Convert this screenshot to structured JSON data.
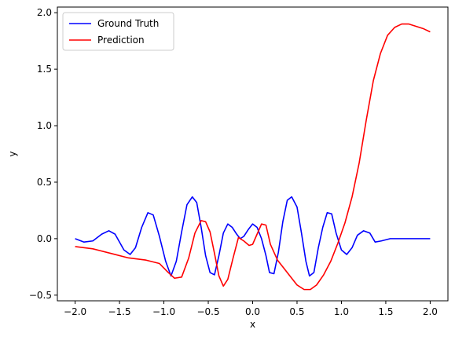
{
  "chart_data": {
    "type": "line",
    "title": "",
    "xlabel": "x",
    "ylabel": "y",
    "xlim": [
      -2.2,
      2.2
    ],
    "ylim": [
      -0.55,
      2.05
    ],
    "xticks": [
      -2.0,
      -1.5,
      -1.0,
      -0.5,
      0.0,
      0.5,
      1.0,
      1.5,
      2.0
    ],
    "xtick_labels": [
      "−2.0",
      "−1.5",
      "−1.0",
      "−0.5",
      "0.0",
      "0.5",
      "1.0",
      "1.5",
      "2.0"
    ],
    "yticks": [
      -0.5,
      0.0,
      0.5,
      1.0,
      1.5,
      2.0
    ],
    "ytick_labels": [
      "−0.5",
      "0.0",
      "0.5",
      "1.0",
      "1.5",
      "2.0"
    ],
    "grid": false,
    "legend_position": "top-left",
    "series": [
      {
        "name": "Ground Truth",
        "color": "#0000ff",
        "x": [
          -2.0,
          -1.9,
          -1.8,
          -1.7,
          -1.62,
          -1.55,
          -1.45,
          -1.38,
          -1.32,
          -1.25,
          -1.18,
          -1.12,
          -1.05,
          -0.98,
          -0.92,
          -0.86,
          -0.8,
          -0.74,
          -0.68,
          -0.63,
          -0.58,
          -0.53,
          -0.48,
          -0.43,
          -0.38,
          -0.33,
          -0.28,
          -0.23,
          -0.18,
          -0.14,
          -0.1,
          -0.05,
          0.0,
          0.05,
          0.1,
          0.15,
          0.19,
          0.24,
          0.29,
          0.34,
          0.39,
          0.44,
          0.5,
          0.55,
          0.6,
          0.64,
          0.69,
          0.74,
          0.79,
          0.84,
          0.89,
          0.94,
          1.0,
          1.06,
          1.12,
          1.18,
          1.25,
          1.32,
          1.38,
          1.45,
          1.55,
          1.62,
          1.7,
          1.8,
          1.9,
          2.0
        ],
        "y": [
          0.0,
          -0.03,
          -0.02,
          0.04,
          0.07,
          0.04,
          -0.1,
          -0.14,
          -0.08,
          0.1,
          0.23,
          0.21,
          0.02,
          -0.2,
          -0.33,
          -0.2,
          0.06,
          0.3,
          0.37,
          0.32,
          0.1,
          -0.15,
          -0.3,
          -0.32,
          -0.15,
          0.05,
          0.13,
          0.1,
          0.04,
          0.0,
          0.02,
          0.08,
          0.13,
          0.1,
          0.0,
          -0.15,
          -0.3,
          -0.31,
          -0.12,
          0.15,
          0.34,
          0.37,
          0.28,
          0.05,
          -0.2,
          -0.33,
          -0.3,
          -0.08,
          0.1,
          0.23,
          0.22,
          0.05,
          -0.1,
          -0.14,
          -0.08,
          0.03,
          0.07,
          0.05,
          -0.03,
          -0.02,
          0.0,
          0.0,
          0.0,
          0.0,
          0.0,
          0.0
        ]
      },
      {
        "name": "Prediction",
        "color": "#ff0000",
        "x": [
          -2.0,
          -1.8,
          -1.6,
          -1.4,
          -1.2,
          -1.05,
          -0.95,
          -0.88,
          -0.8,
          -0.72,
          -0.65,
          -0.58,
          -0.53,
          -0.48,
          -0.43,
          -0.38,
          -0.33,
          -0.28,
          -0.22,
          -0.16,
          -0.1,
          -0.04,
          0.0,
          0.05,
          0.1,
          0.15,
          0.2,
          0.28,
          0.35,
          0.42,
          0.5,
          0.58,
          0.65,
          0.72,
          0.8,
          0.88,
          0.96,
          1.04,
          1.12,
          1.2,
          1.28,
          1.36,
          1.44,
          1.52,
          1.6,
          1.68,
          1.76,
          1.84,
          1.92,
          2.0
        ],
        "y": [
          -0.07,
          -0.09,
          -0.13,
          -0.17,
          -0.19,
          -0.22,
          -0.3,
          -0.35,
          -0.34,
          -0.17,
          0.05,
          0.16,
          0.15,
          0.06,
          -0.13,
          -0.33,
          -0.42,
          -0.36,
          -0.17,
          0.01,
          -0.02,
          -0.06,
          -0.05,
          0.04,
          0.13,
          0.12,
          -0.05,
          -0.19,
          -0.26,
          -0.33,
          -0.41,
          -0.45,
          -0.45,
          -0.41,
          -0.32,
          -0.2,
          -0.04,
          0.14,
          0.37,
          0.67,
          1.05,
          1.4,
          1.64,
          1.8,
          1.87,
          1.9,
          1.9,
          1.88,
          1.86,
          1.83
        ]
      }
    ]
  }
}
